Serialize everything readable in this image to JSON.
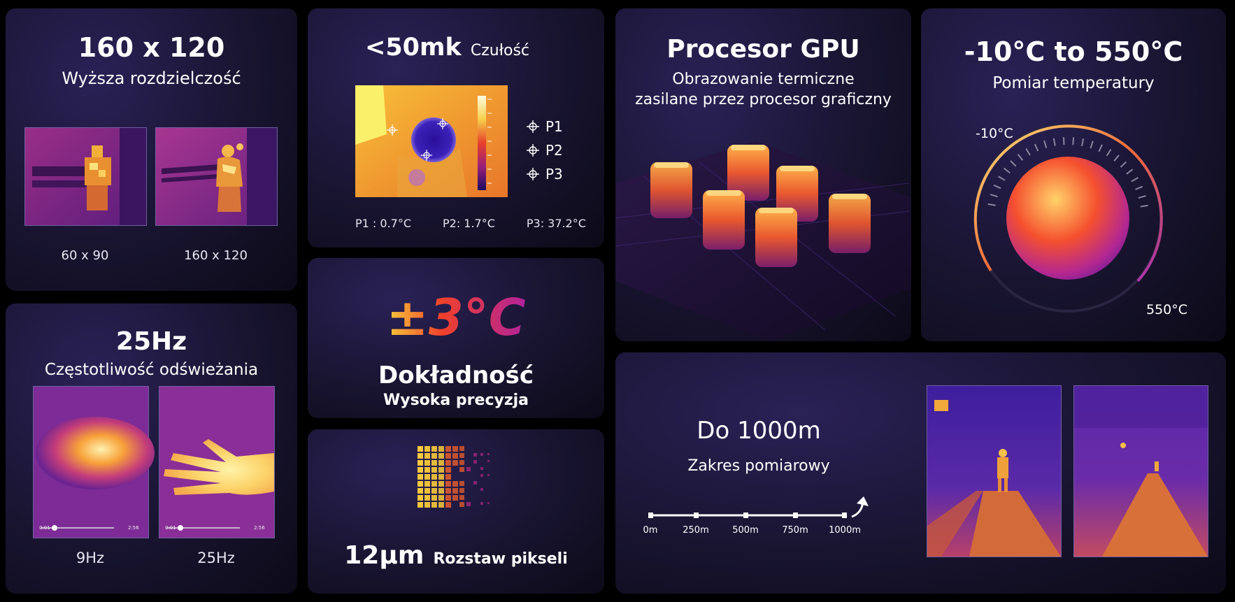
{
  "resolution": {
    "title": "160 x 120",
    "subtitle": "Wyższa rozdzielczość",
    "left_label": "60 x 90",
    "right_label": "160 x 120"
  },
  "refresh": {
    "title": "25Hz",
    "subtitle": "Częstotliwość odświeżania",
    "left_label": "9Hz",
    "right_label": "25Hz",
    "player_start": "0:01",
    "player_end": "2:56"
  },
  "sensitivity": {
    "value": "<50mk",
    "label": "Czułość",
    "points": [
      "P1",
      "P2",
      "P3"
    ],
    "readings": [
      "P1 : 0.7°C",
      "P2:  1.7°C",
      "P3:  37.2°C"
    ]
  },
  "accuracy": {
    "value": "±3°C",
    "title": "Dokładność",
    "subtitle": "Wysoka precyzja"
  },
  "pixel": {
    "value": "12μm",
    "label": "Rozstaw pikseli"
  },
  "gpu": {
    "title": "Procesor GPU",
    "subtitle_line1": "Obrazowanie termiczne",
    "subtitle_line2": "zasilane przez procesor graficzny"
  },
  "temperature": {
    "title": "-10°C to 550°C",
    "subtitle": "Pomiar temperatury",
    "min_label": "-10°C",
    "max_label": "550°C"
  },
  "range": {
    "title": "Do 1000m",
    "subtitle": "Zakres pomiarowy",
    "ticks": [
      "0m",
      "250m",
      "500m",
      "750m",
      "1000m"
    ]
  }
}
